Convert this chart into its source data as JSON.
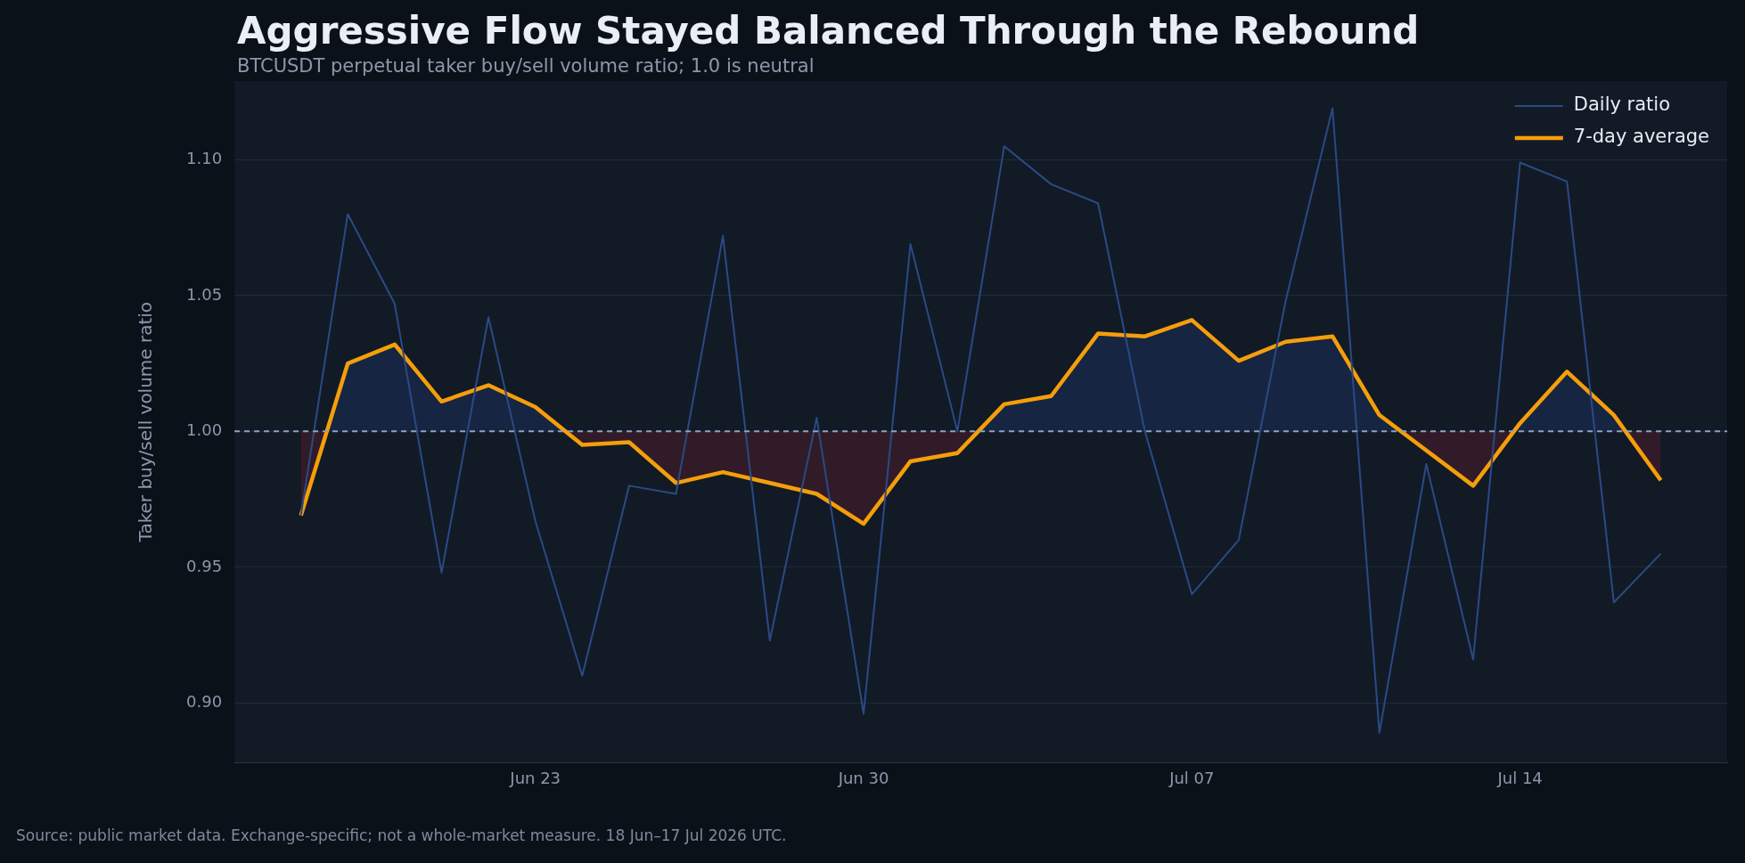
{
  "chart_data": {
    "type": "line",
    "title": "Aggressive Flow Stayed Balanced Through the Rebound",
    "subtitle": "BTCUSDT perpetual taker buy/sell volume ratio; 1.0 is neutral",
    "ylabel": "Taker buy/sell volume ratio",
    "annotations": [
      "Source: public market data. Exchange-specific; not a whole-market measure. 18 Jun–17 Jul 2026 UTC."
    ],
    "x": [
      "2026-06-18",
      "2026-06-19",
      "2026-06-20",
      "2026-06-21",
      "2026-06-22",
      "2026-06-23",
      "2026-06-24",
      "2026-06-25",
      "2026-06-26",
      "2026-06-27",
      "2026-06-28",
      "2026-06-29",
      "2026-06-30",
      "2026-07-01",
      "2026-07-02",
      "2026-07-03",
      "2026-07-04",
      "2026-07-05",
      "2026-07-06",
      "2026-07-07",
      "2026-07-08",
      "2026-07-09",
      "2026-07-10",
      "2026-07-11",
      "2026-07-12",
      "2026-07-13",
      "2026-07-14",
      "2026-07-15",
      "2026-07-16",
      "2026-07-17"
    ],
    "series": [
      {
        "name": "Daily ratio",
        "color": "#2a4a85",
        "values": [
          0.969,
          1.08,
          1.047,
          0.948,
          1.042,
          0.967,
          0.91,
          0.98,
          0.977,
          1.072,
          0.923,
          1.005,
          0.896,
          1.069,
          1.0,
          1.105,
          1.091,
          1.084,
          1.0,
          0.94,
          0.96,
          1.048,
          1.119,
          0.889,
          0.988,
          0.916,
          1.099,
          1.092,
          0.937,
          0.955
        ]
      },
      {
        "name": "7-day average",
        "color": "#f59e0b",
        "values": [
          0.969,
          1.025,
          1.032,
          1.011,
          1.017,
          1.009,
          0.995,
          0.996,
          0.981,
          0.985,
          0.981,
          0.977,
          0.966,
          0.989,
          0.992,
          1.01,
          1.013,
          1.036,
          1.035,
          1.041,
          1.026,
          1.033,
          1.035,
          1.006,
          0.993,
          0.98,
          1.003,
          1.022,
          1.006,
          0.982
        ]
      }
    ],
    "xlim": [
      "2026-06-16T14:00",
      "2026-07-18T10:00"
    ],
    "xticks": [
      {
        "value": "2026-06-23",
        "label": "Jun 23"
      },
      {
        "value": "2026-06-30",
        "label": "Jun 30"
      },
      {
        "value": "2026-07-07",
        "label": "Jul 07"
      },
      {
        "value": "2026-07-14",
        "label": "Jul 14"
      }
    ],
    "ylim": [
      0.878,
      1.129
    ],
    "yticks": [
      {
        "value": 0.9,
        "label": "0.90"
      },
      {
        "value": 0.95,
        "label": "0.95"
      },
      {
        "value": 1.0,
        "label": "1.00"
      },
      {
        "value": 1.05,
        "label": "1.05"
      },
      {
        "value": 1.1,
        "label": "1.10"
      }
    ],
    "ref_lines": [
      {
        "axis": "y",
        "value": 1.0,
        "color": "#8fa3bf",
        "line_style": "dashed"
      }
    ],
    "grid": "y",
    "legend": "top right",
    "marker": "none",
    "line_style": "solid"
  }
}
